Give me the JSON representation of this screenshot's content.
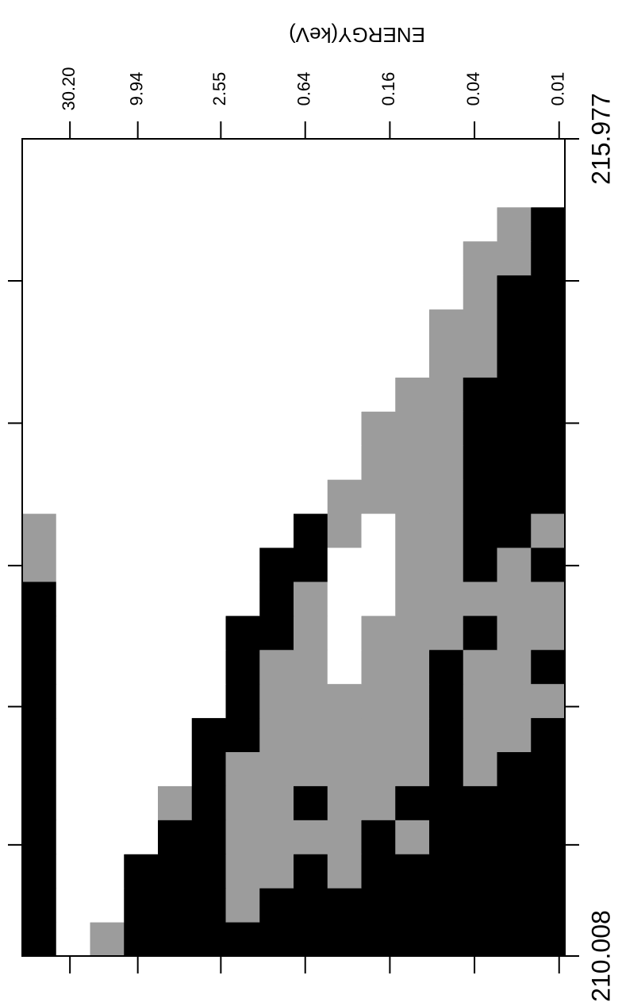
{
  "chart_data": {
    "type": "heatmap",
    "y_label": "ENERGY(keV)",
    "xlim": [
      210.008,
      215.977
    ],
    "xticks": [
      210.008,
      215.977
    ],
    "xminor_ticks": [
      210.82,
      211.83,
      212.86,
      213.9,
      214.94
    ],
    "ylim": [
      0.0091,
      66
    ],
    "ylog": true,
    "yticks": [
      {
        "value": 30.2,
        "label": "30.20"
      },
      9.94,
      2.55,
      0.64,
      0.16,
      0.04,
      0.01
    ],
    "colors": [
      "#ffffff",
      "#9c9c9c",
      "#000000"
    ],
    "values": [
      [
        2,
        0,
        1,
        2,
        2,
        2,
        2,
        2,
        2,
        2,
        2,
        2,
        2,
        2,
        2,
        2
      ],
      [
        2,
        0,
        0,
        2,
        2,
        2,
        1,
        2,
        2,
        2,
        2,
        2,
        2,
        2,
        2,
        2
      ],
      [
        2,
        0,
        0,
        2,
        2,
        2,
        1,
        1,
        2,
        1,
        2,
        2,
        2,
        2,
        2,
        2
      ],
      [
        2,
        0,
        0,
        0,
        2,
        2,
        1,
        1,
        1,
        1,
        2,
        1,
        2,
        2,
        2,
        2
      ],
      [
        2,
        0,
        0,
        0,
        1,
        2,
        1,
        1,
        2,
        1,
        1,
        2,
        2,
        2,
        2,
        2
      ],
      [
        2,
        0,
        0,
        0,
        0,
        2,
        1,
        1,
        1,
        1,
        1,
        1,
        2,
        1,
        2,
        2
      ],
      [
        2,
        0,
        0,
        0,
        0,
        2,
        2,
        1,
        1,
        1,
        1,
        1,
        2,
        1,
        1,
        2
      ],
      [
        2,
        0,
        0,
        0,
        0,
        0,
        2,
        1,
        1,
        1,
        1,
        1,
        2,
        1,
        1,
        1
      ],
      [
        2,
        0,
        0,
        0,
        0,
        0,
        2,
        1,
        1,
        0,
        1,
        1,
        2,
        1,
        1,
        2
      ],
      [
        2,
        0,
        0,
        0,
        0,
        0,
        2,
        2,
        1,
        0,
        1,
        1,
        1,
        2,
        1,
        1
      ],
      [
        2,
        0,
        0,
        0,
        0,
        0,
        0,
        2,
        1,
        0,
        0,
        1,
        1,
        1,
        1,
        1
      ],
      [
        1,
        0,
        0,
        0,
        0,
        0,
        0,
        2,
        2,
        0,
        0,
        1,
        1,
        2,
        1,
        2
      ],
      [
        1,
        0,
        0,
        0,
        0,
        0,
        0,
        0,
        2,
        1,
        0,
        1,
        1,
        2,
        2,
        1
      ],
      [
        0,
        0,
        0,
        0,
        0,
        0,
        0,
        0,
        0,
        1,
        1,
        1,
        1,
        2,
        2,
        2
      ],
      [
        0,
        0,
        0,
        0,
        0,
        0,
        0,
        0,
        0,
        0,
        1,
        1,
        1,
        2,
        2,
        2
      ],
      [
        0,
        0,
        0,
        0,
        0,
        0,
        0,
        0,
        0,
        0,
        1,
        1,
        1,
        2,
        2,
        2
      ],
      [
        0,
        0,
        0,
        0,
        0,
        0,
        0,
        0,
        0,
        0,
        0,
        1,
        1,
        2,
        2,
        2
      ],
      [
        0,
        0,
        0,
        0,
        0,
        0,
        0,
        0,
        0,
        0,
        0,
        0,
        1,
        1,
        2,
        2
      ],
      [
        0,
        0,
        0,
        0,
        0,
        0,
        0,
        0,
        0,
        0,
        0,
        0,
        1,
        1,
        2,
        2
      ],
      [
        0,
        0,
        0,
        0,
        0,
        0,
        0,
        0,
        0,
        0,
        0,
        0,
        0,
        1,
        2,
        2
      ],
      [
        0,
        0,
        0,
        0,
        0,
        0,
        0,
        0,
        0,
        0,
        0,
        0,
        0,
        1,
        1,
        2
      ],
      [
        0,
        0,
        0,
        0,
        0,
        0,
        0,
        0,
        0,
        0,
        0,
        0,
        0,
        0,
        1,
        2
      ],
      [
        0,
        0,
        0,
        0,
        0,
        0,
        0,
        0,
        0,
        0,
        0,
        0,
        0,
        0,
        0,
        0
      ],
      [
        0,
        0,
        0,
        0,
        0,
        0,
        0,
        0,
        0,
        0,
        0,
        0,
        0,
        0,
        0,
        0
      ]
    ]
  }
}
